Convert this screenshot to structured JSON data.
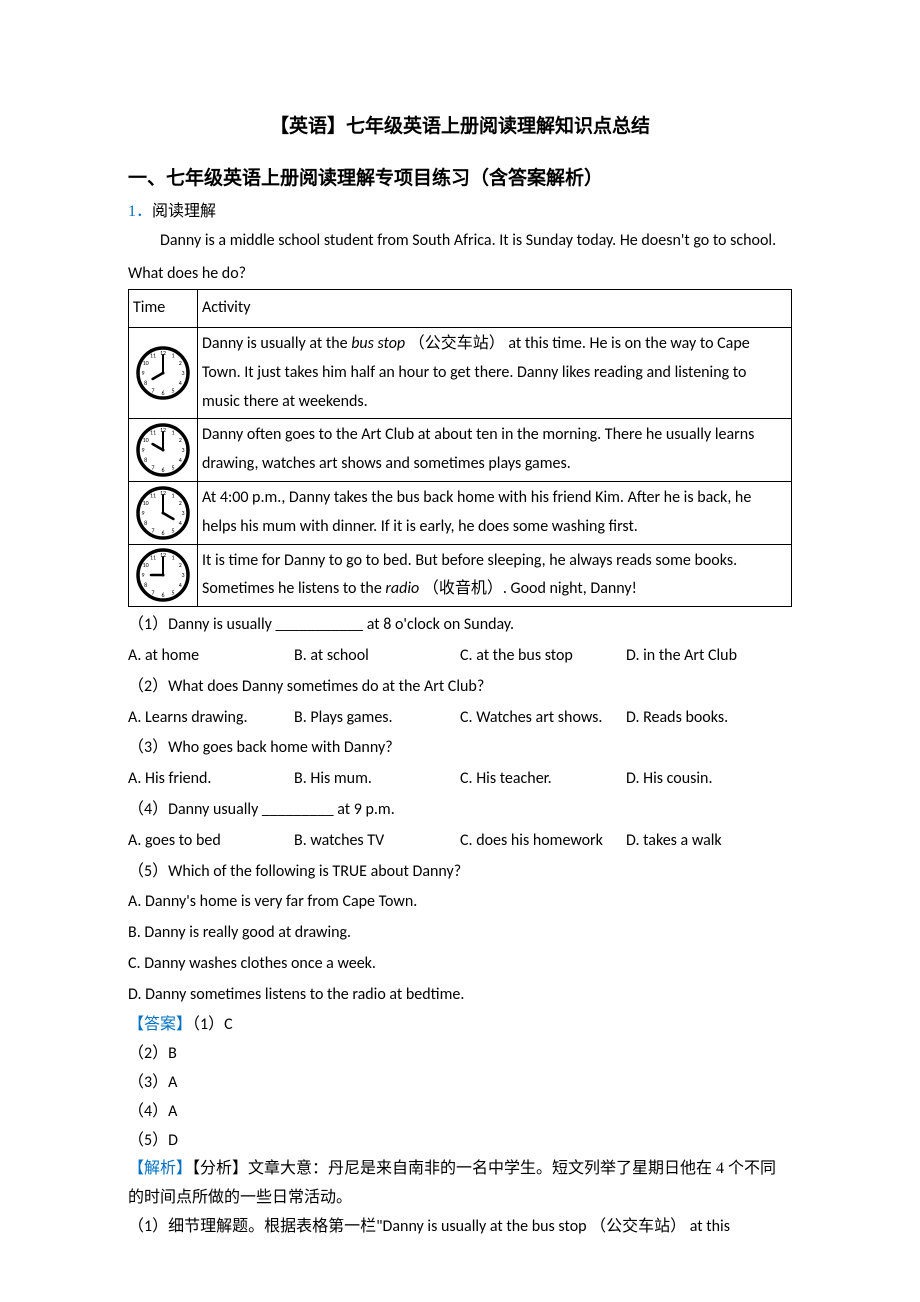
{
  "title": "【英语】七年级英语上册阅读理解知识点总结",
  "section_header": "一、七年级英语上册阅读理解专项目练习（含答案解析）",
  "question_prefix": "1．",
  "question_label": "阅读理解",
  "intro_line1": "Danny is a middle school student from South Africa. It is Sunday today. He doesn't go to school.",
  "intro_line2": "What does he do?",
  "table": {
    "header_time": "Time",
    "header_activity": "Activity",
    "rows": [
      {
        "clock": {
          "hour": 8,
          "minute": 0
        },
        "text_parts": [
          {
            "t": "Danny is usually at the ",
            "i": false
          },
          {
            "t": "bus stop",
            "i": true
          },
          {
            "t": " （公交车站） at this time. He is on the way to Cape Town. It just takes him half an hour to get there. Danny likes reading and listening to music there at weekends.",
            "i": false
          }
        ]
      },
      {
        "clock": {
          "hour": 10,
          "minute": 0
        },
        "text_parts": [
          {
            "t": "Danny often goes to the Art Club at about ten in the morning. There he usually learns drawing, watches art shows and sometimes plays games.",
            "i": false
          }
        ]
      },
      {
        "clock": {
          "hour": 4,
          "minute": 0
        },
        "text_parts": [
          {
            "t": "At 4:00 p.m., Danny takes the bus back home with his friend Kim. After he is back, he helps his mum with dinner. If it is early, he does some washing first.",
            "i": false
          }
        ]
      },
      {
        "clock": {
          "hour": 9,
          "minute": 0
        },
        "text_parts": [
          {
            "t": "It is time for Danny to go to bed. But before sleeping, he always reads some books. Sometimes he listens to the ",
            "i": false
          },
          {
            "t": "radio",
            "i": true
          },
          {
            "t": " （收音机）. Good night, Danny!",
            "i": false
          }
        ]
      }
    ]
  },
  "questions": [
    {
      "stem": "（1）Danny is usually ___________ at 8 o'clock on Sunday.",
      "options": [
        "A. at home",
        "B. at school",
        "C. at the bus stop",
        "D. in the Art Club"
      ]
    },
    {
      "stem": "（2）What does Danny sometimes do at the Art Club?",
      "options": [
        "A. Learns drawing.",
        "B. Plays games.",
        "C. Watches art shows.",
        "D. Reads books."
      ]
    },
    {
      "stem": "（3）Who goes back home with Danny?",
      "options": [
        "A. His friend.",
        "B. His mum.",
        "C. His teacher.",
        "D. His cousin."
      ]
    },
    {
      "stem": "（4）Danny usually _________ at 9 p.m.",
      "options": [
        "A. goes to bed",
        "B. watches TV",
        "C. does his homework",
        "D. takes a walk"
      ]
    },
    {
      "stem": "（5）Which of the following is TRUE about Danny?",
      "vertical_options": [
        "A. Danny's home is very far from Cape Town.",
        "B. Danny is really good at drawing.",
        "C. Danny washes clothes once a week.",
        "D. Danny sometimes listens to the radio at bedtime."
      ]
    }
  ],
  "answers": {
    "label": "【答案】",
    "items": [
      "（1）C",
      "（2）B",
      "（3）A",
      "（4）A",
      "（5）D"
    ]
  },
  "analysis": {
    "label": "【解析】",
    "head": "【分析】文章大意：丹尼是来自南非的一名中学生。短文列举了星期日他在 4 个不同的时间点所做的一些日常活动。",
    "detail": "（1）细节理解题。根据表格第一栏\"Danny is usually at the bus stop （公交车站） at this"
  },
  "clock_style": {
    "size": 54,
    "stroke": "#000000",
    "rim_width": 3.5,
    "tick_font": 6,
    "hour_hand_len": 12,
    "min_hand_len": 18
  }
}
